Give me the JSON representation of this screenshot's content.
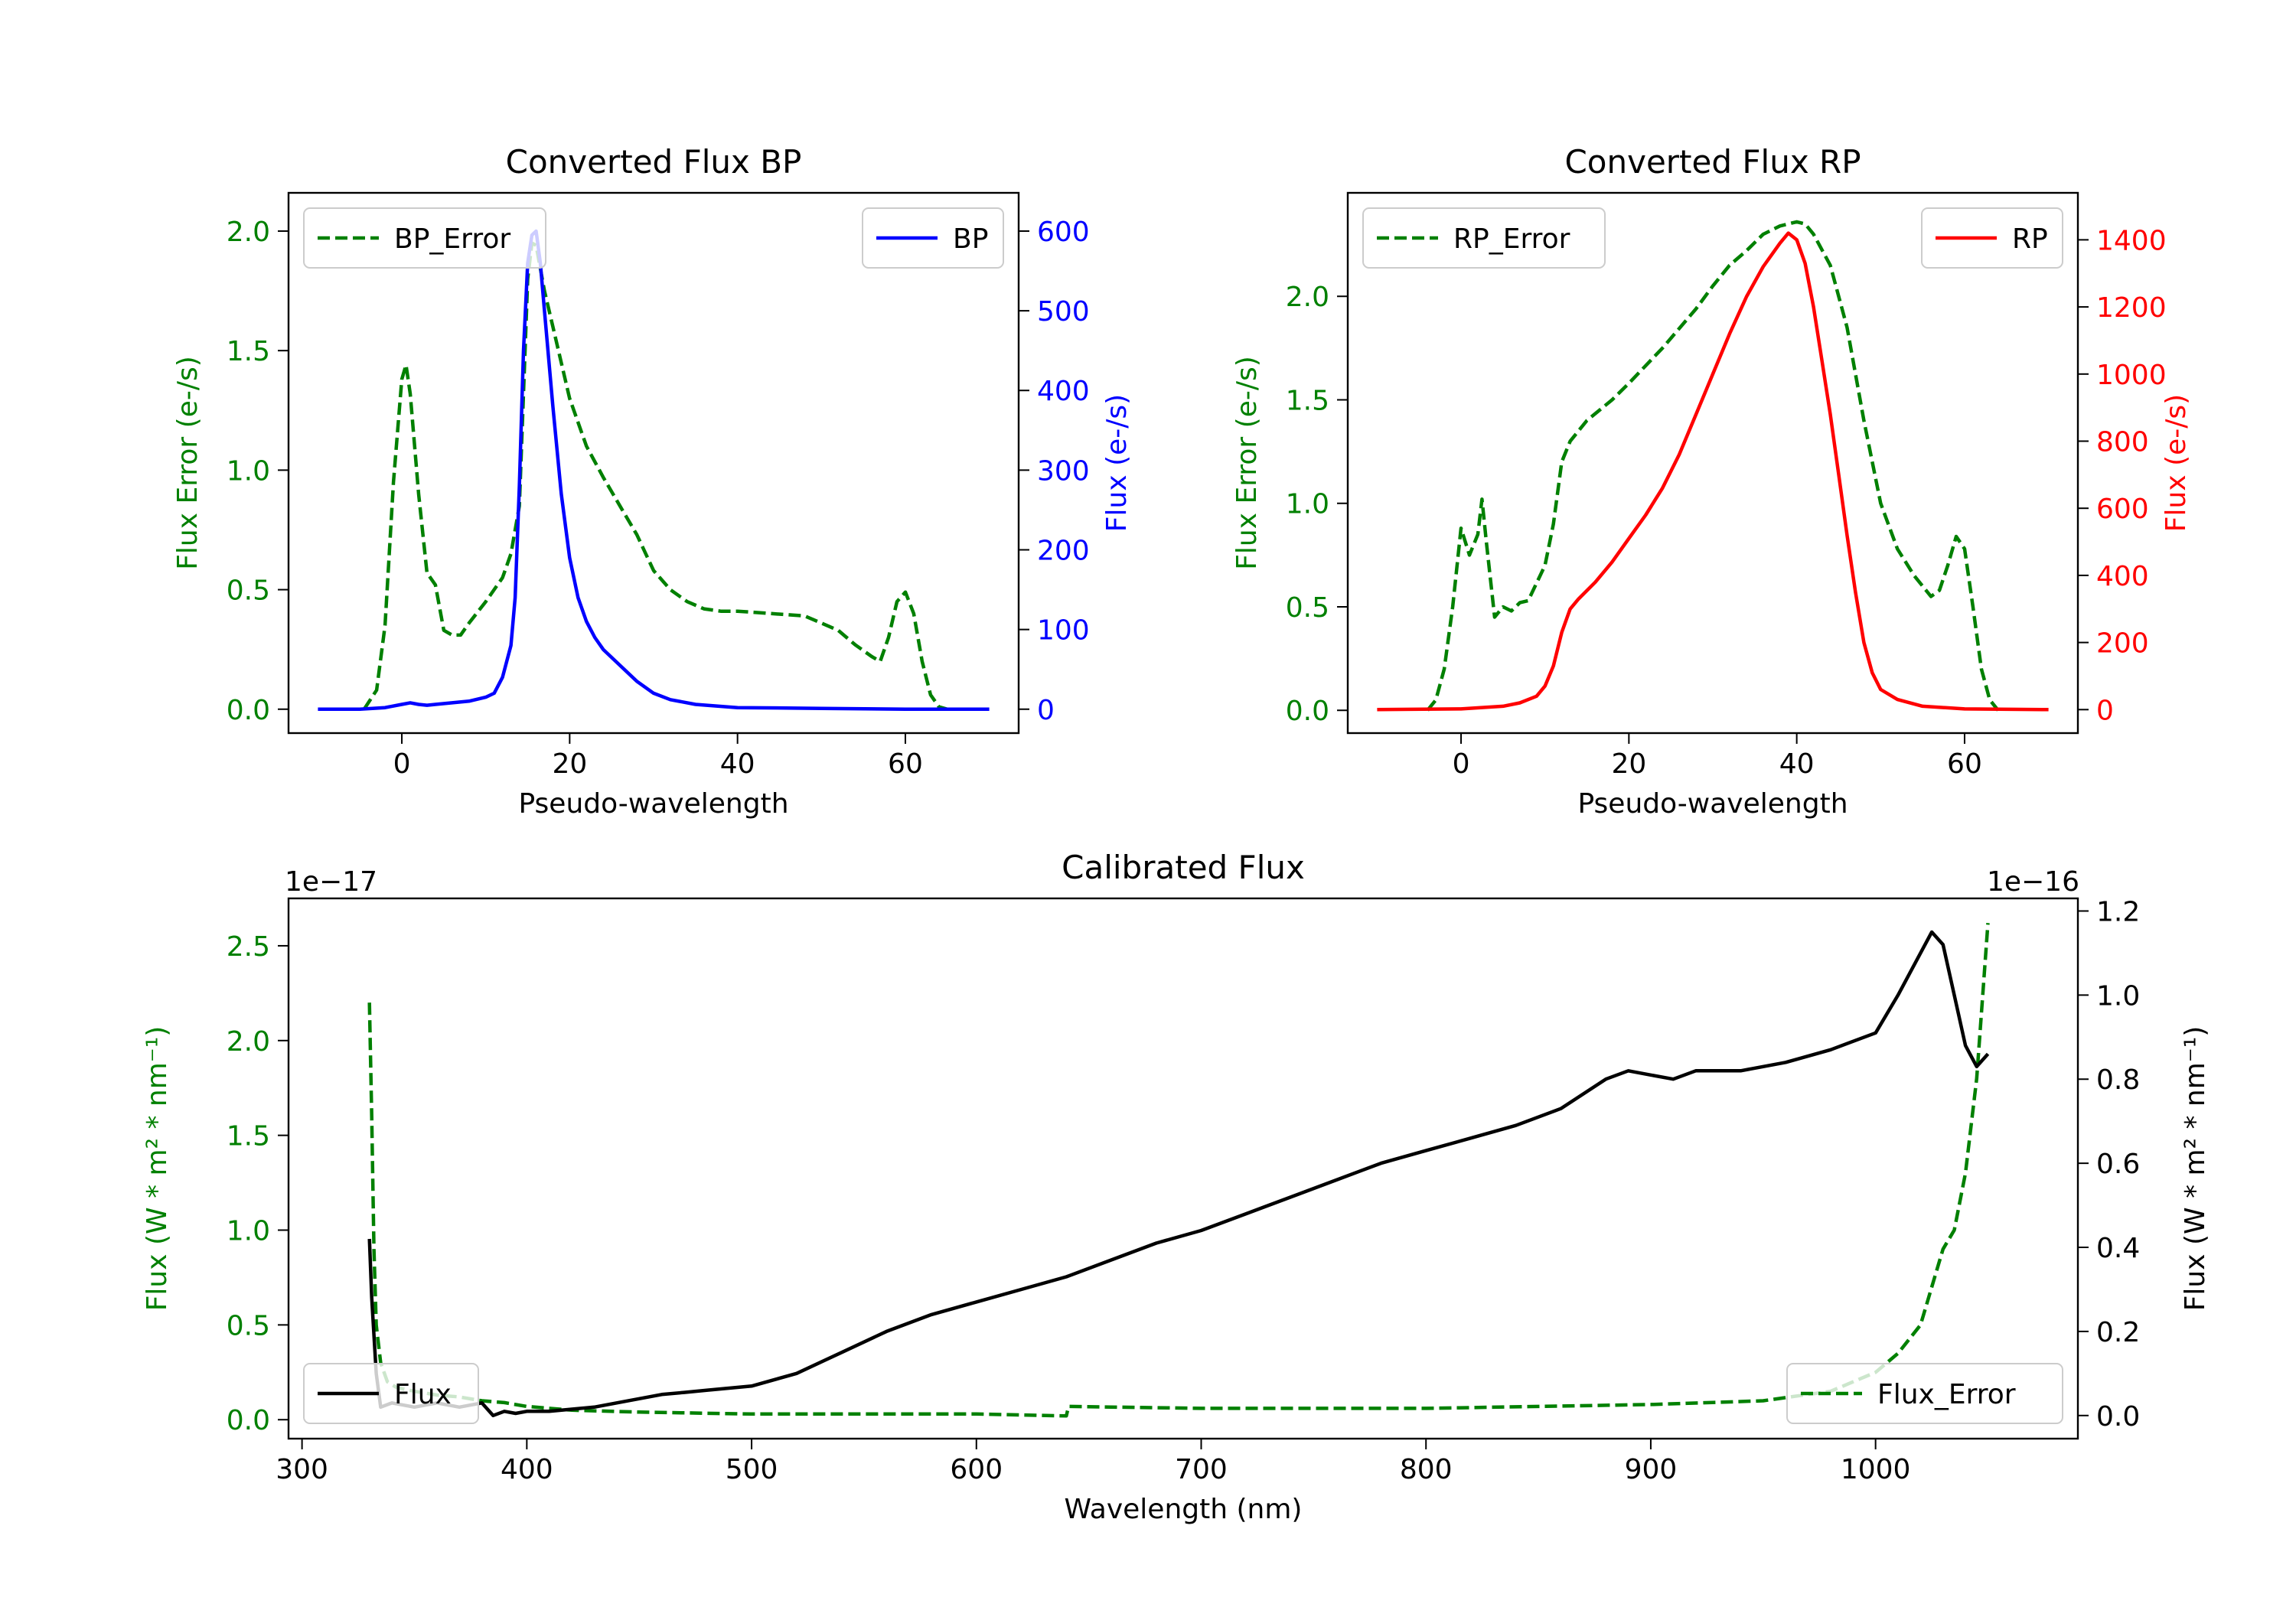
{
  "chart_data": [
    {
      "id": "bp",
      "type": "line",
      "title": "Converted Flux BP",
      "xlabel": "Pseudo-wavelength",
      "ylabel_left": "Flux Error (e-/s)",
      "ylabel_right": "Flux (e-/s)",
      "left_color": "#008000",
      "right_color": "#0000ff",
      "xlim": [
        -13.5,
        73.5
      ],
      "ylim_left": [
        -0.1,
        2.16
      ],
      "ylim_right": [
        -30,
        648
      ],
      "xticks": [
        0,
        20,
        40,
        60
      ],
      "yticks_left": [
        0.0,
        0.5,
        1.0,
        1.5,
        2.0
      ],
      "yticks_right": [
        0,
        100,
        200,
        300,
        400,
        500,
        600
      ],
      "series": [
        {
          "name": "BP_Error",
          "axis": "left",
          "color": "#008000",
          "style": "dashed",
          "x": [
            -4.5,
            -3,
            -2,
            -1,
            0,
            0.5,
            1,
            2,
            3,
            4,
            5,
            6,
            7,
            8,
            10,
            12,
            13,
            14,
            15,
            15.5,
            16,
            17,
            18,
            20,
            22,
            24,
            26,
            28,
            30,
            32,
            34,
            36,
            38,
            40,
            44,
            48,
            52,
            54,
            56,
            57,
            58,
            59,
            60,
            61,
            62,
            63,
            64,
            65
          ],
          "y": [
            0,
            0.08,
            0.35,
            0.95,
            1.38,
            1.44,
            1.32,
            0.9,
            0.57,
            0.52,
            0.33,
            0.31,
            0.31,
            0.36,
            0.45,
            0.55,
            0.65,
            0.85,
            1.8,
            1.95,
            1.94,
            1.75,
            1.6,
            1.3,
            1.1,
            0.97,
            0.85,
            0.73,
            0.58,
            0.5,
            0.45,
            0.42,
            0.41,
            0.41,
            0.4,
            0.39,
            0.33,
            0.27,
            0.22,
            0.2,
            0.3,
            0.45,
            0.49,
            0.4,
            0.2,
            0.06,
            0.01,
            0
          ]
        },
        {
          "name": "BP",
          "axis": "right",
          "color": "#0000ff",
          "style": "solid",
          "x": [
            -10,
            -5,
            -2,
            0,
            1,
            2,
            3,
            4,
            6,
            8,
            10,
            11,
            12,
            13,
            13.5,
            14,
            14.5,
            15,
            15.5,
            16,
            16.5,
            17,
            18,
            19,
            20,
            21,
            22,
            23,
            24,
            26,
            28,
            30,
            32,
            35,
            40,
            50,
            60,
            70
          ],
          "y": [
            0,
            0,
            2,
            6,
            8,
            6,
            5,
            6,
            8,
            10,
            15,
            20,
            40,
            80,
            140,
            280,
            450,
            560,
            595,
            600,
            560,
            500,
            380,
            270,
            190,
            140,
            110,
            90,
            75,
            55,
            35,
            20,
            12,
            6,
            2,
            1,
            0,
            0
          ]
        }
      ],
      "legend": [
        {
          "label": "BP_Error",
          "placement": "upper left"
        },
        {
          "label": "BP",
          "placement": "upper right"
        }
      ]
    },
    {
      "id": "rp",
      "type": "line",
      "title": "Converted Flux RP",
      "xlabel": "Pseudo-wavelength",
      "ylabel_left": "Flux Error (e-/s)",
      "ylabel_right": "Flux (e-/s)",
      "left_color": "#008000",
      "right_color": "#ff0000",
      "xlim": [
        -13.5,
        73.5
      ],
      "ylim_left": [
        -0.11,
        2.5
      ],
      "ylim_right": [
        -70,
        1540
      ],
      "xticks": [
        0,
        20,
        40,
        60
      ],
      "yticks_left": [
        0.0,
        0.5,
        1.0,
        1.5,
        2.0
      ],
      "yticks_right": [
        0,
        200,
        400,
        600,
        800,
        1000,
        1200,
        1400
      ],
      "series": [
        {
          "name": "RP_Error",
          "axis": "left",
          "color": "#008000",
          "style": "dashed",
          "x": [
            -4,
            -3,
            -2,
            -1,
            0,
            1,
            2,
            2.5,
            3,
            4,
            5,
            6,
            7,
            8,
            10,
            11,
            12,
            13,
            15,
            18,
            20,
            24,
            28,
            30,
            32,
            34,
            36,
            38,
            40,
            41,
            42,
            44,
            46,
            48,
            50,
            52,
            54,
            56,
            57,
            58,
            59,
            60,
            61,
            62,
            63,
            64
          ],
          "y": [
            0,
            0.05,
            0.2,
            0.5,
            0.88,
            0.75,
            0.85,
            1.02,
            0.82,
            0.45,
            0.5,
            0.48,
            0.52,
            0.53,
            0.7,
            0.9,
            1.2,
            1.3,
            1.4,
            1.5,
            1.58,
            1.75,
            1.94,
            2.05,
            2.15,
            2.22,
            2.3,
            2.34,
            2.36,
            2.35,
            2.3,
            2.15,
            1.85,
            1.4,
            1.0,
            0.78,
            0.65,
            0.55,
            0.58,
            0.7,
            0.84,
            0.78,
            0.5,
            0.2,
            0.05,
            0
          ]
        },
        {
          "name": "RP",
          "axis": "right",
          "color": "#ff0000",
          "style": "solid",
          "x": [
            -10,
            0,
            5,
            7,
            9,
            10,
            11,
            12,
            13,
            14,
            16,
            18,
            20,
            22,
            24,
            26,
            28,
            30,
            32,
            34,
            36,
            38,
            39,
            40,
            41,
            42,
            43,
            44,
            45,
            46,
            47,
            48,
            49,
            50,
            52,
            55,
            60,
            70
          ],
          "y": [
            0,
            2,
            10,
            20,
            40,
            70,
            130,
            230,
            300,
            330,
            380,
            440,
            510,
            580,
            660,
            760,
            880,
            1000,
            1120,
            1230,
            1320,
            1390,
            1420,
            1400,
            1330,
            1200,
            1040,
            880,
            700,
            520,
            350,
            200,
            110,
            60,
            30,
            10,
            2,
            0
          ]
        }
      ],
      "legend": [
        {
          "label": "RP_Error",
          "placement": "upper left"
        },
        {
          "label": "RP",
          "placement": "upper right"
        }
      ]
    },
    {
      "id": "cal",
      "type": "line",
      "title": "Calibrated Flux",
      "xlabel": "Wavelength (nm)",
      "ylabel_left": "Flux (W * m² * nm⁻¹)",
      "ylabel_right": "Flux (W * m² * nm⁻¹)",
      "offset_left": "1e−17",
      "offset_right": "1e−16",
      "left_color": "#008000",
      "right_color": "#000000",
      "xlim": [
        294,
        1090
      ],
      "ylim_left": [
        -0.1,
        2.75
      ],
      "ylim_right": [
        -0.055,
        1.23
      ],
      "xticks": [
        300,
        400,
        500,
        600,
        700,
        800,
        900,
        1000
      ],
      "yticks_left": [
        0.0,
        0.5,
        1.0,
        1.5,
        2.0,
        2.5
      ],
      "yticks_right": [
        0.0,
        0.2,
        0.4,
        0.6,
        0.8,
        1.0,
        1.2
      ],
      "series": [
        {
          "name": "Flux_Error",
          "axis": "left",
          "color": "#008000",
          "style": "dashed",
          "x": [
            330,
            331,
            332,
            333,
            335,
            338,
            342,
            350,
            360,
            370,
            380,
            390,
            400,
            420,
            450,
            500,
            550,
            600,
            640,
            641,
            700,
            800,
            900,
            950,
            980,
            1000,
            1010,
            1020,
            1025,
            1030,
            1035,
            1040,
            1045,
            1050
          ],
          "y": [
            2.2,
            1.6,
            0.9,
            0.5,
            0.3,
            0.2,
            0.17,
            0.15,
            0.13,
            0.12,
            0.1,
            0.09,
            0.07,
            0.05,
            0.04,
            0.03,
            0.03,
            0.03,
            0.02,
            0.07,
            0.06,
            0.06,
            0.08,
            0.1,
            0.15,
            0.25,
            0.35,
            0.5,
            0.7,
            0.9,
            1.0,
            1.3,
            1.8,
            2.62
          ]
        },
        {
          "name": "Flux",
          "axis": "right",
          "color": "#000000",
          "style": "solid",
          "x": [
            330,
            331,
            333,
            335,
            340,
            350,
            360,
            370,
            380,
            385,
            390,
            395,
            400,
            410,
            420,
            430,
            440,
            450,
            460,
            470,
            480,
            500,
            520,
            540,
            560,
            580,
            600,
            620,
            640,
            660,
            680,
            700,
            720,
            740,
            760,
            780,
            800,
            820,
            840,
            860,
            880,
            890,
            900,
            910,
            920,
            940,
            960,
            980,
            1000,
            1010,
            1020,
            1025,
            1030,
            1035,
            1040,
            1045,
            1050
          ],
          "y": [
            0.42,
            0.28,
            0.1,
            0.02,
            0.03,
            0.02,
            0.03,
            0.02,
            0.03,
            0.0,
            0.01,
            0.005,
            0.01,
            0.01,
            0.015,
            0.02,
            0.03,
            0.04,
            0.05,
            0.055,
            0.06,
            0.07,
            0.1,
            0.15,
            0.2,
            0.24,
            0.27,
            0.3,
            0.33,
            0.37,
            0.41,
            0.44,
            0.48,
            0.52,
            0.56,
            0.6,
            0.63,
            0.66,
            0.69,
            0.73,
            0.8,
            0.82,
            0.81,
            0.8,
            0.82,
            0.82,
            0.84,
            0.87,
            0.91,
            1.0,
            1.1,
            1.15,
            1.12,
            1.0,
            0.88,
            0.83,
            0.86
          ]
        }
      ],
      "legend": [
        {
          "label": "Flux",
          "placement": "lower left"
        },
        {
          "label": "Flux_Error",
          "placement": "lower right"
        }
      ]
    }
  ]
}
